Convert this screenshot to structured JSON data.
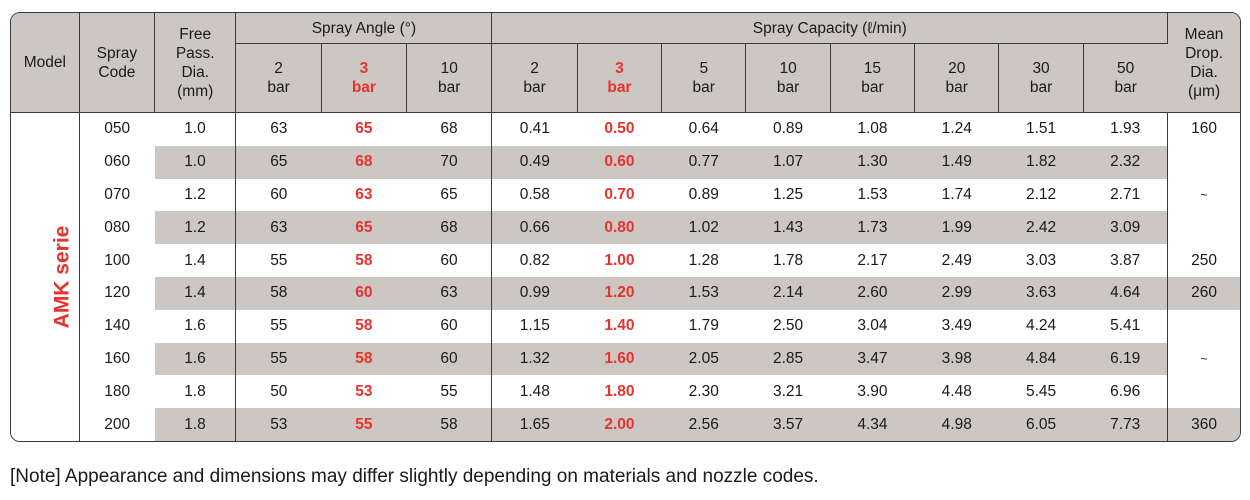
{
  "header": {
    "model": "Model",
    "spray_code": "Spray\nCode",
    "free_pass": "Free\nPass.\nDia.\n(mm)",
    "spray_angle": "Spray Angle (°)",
    "spray_capacity": "Spray Capacity (ℓ/min)",
    "mean_drop": "Mean\nDrop.\nDia.\n(μm)",
    "angle_pressures": [
      "2\nbar",
      "3\nbar",
      "10\nbar"
    ],
    "capacity_pressures": [
      "2\nbar",
      "3\nbar",
      "5\nbar",
      "10\nbar",
      "15\nbar",
      "20\nbar",
      "30\nbar",
      "50\nbar"
    ]
  },
  "series_label": "AMK serie",
  "rows": [
    {
      "code": "050",
      "pass": "1.0",
      "angle": [
        "63",
        "65",
        "68"
      ],
      "cap": [
        "0.41",
        "0.50",
        "0.64",
        "0.89",
        "1.08",
        "1.24",
        "1.51",
        "1.93"
      ]
    },
    {
      "code": "060",
      "pass": "1.0",
      "angle": [
        "65",
        "68",
        "70"
      ],
      "cap": [
        "0.49",
        "0.60",
        "0.77",
        "1.07",
        "1.30",
        "1.49",
        "1.82",
        "2.32"
      ]
    },
    {
      "code": "070",
      "pass": "1.2",
      "angle": [
        "60",
        "63",
        "65"
      ],
      "cap": [
        "0.58",
        "0.70",
        "0.89",
        "1.25",
        "1.53",
        "1.74",
        "2.12",
        "2.71"
      ]
    },
    {
      "code": "080",
      "pass": "1.2",
      "angle": [
        "63",
        "65",
        "68"
      ],
      "cap": [
        "0.66",
        "0.80",
        "1.02",
        "1.43",
        "1.73",
        "1.99",
        "2.42",
        "3.09"
      ]
    },
    {
      "code": "100",
      "pass": "1.4",
      "angle": [
        "55",
        "58",
        "60"
      ],
      "cap": [
        "0.82",
        "1.00",
        "1.28",
        "1.78",
        "2.17",
        "2.49",
        "3.03",
        "3.87"
      ]
    },
    {
      "code": "120",
      "pass": "1.4",
      "angle": [
        "58",
        "60",
        "63"
      ],
      "cap": [
        "0.99",
        "1.20",
        "1.53",
        "2.14",
        "2.60",
        "2.99",
        "3.63",
        "4.64"
      ]
    },
    {
      "code": "140",
      "pass": "1.6",
      "angle": [
        "55",
        "58",
        "60"
      ],
      "cap": [
        "1.15",
        "1.40",
        "1.79",
        "2.50",
        "3.04",
        "3.49",
        "4.24",
        "5.41"
      ]
    },
    {
      "code": "160",
      "pass": "1.6",
      "angle": [
        "55",
        "58",
        "60"
      ],
      "cap": [
        "1.32",
        "1.60",
        "2.05",
        "2.85",
        "3.47",
        "3.98",
        "4.84",
        "6.19"
      ]
    },
    {
      "code": "180",
      "pass": "1.8",
      "angle": [
        "50",
        "53",
        "55"
      ],
      "cap": [
        "1.48",
        "1.80",
        "2.30",
        "3.21",
        "3.90",
        "4.48",
        "5.45",
        "6.96"
      ]
    },
    {
      "code": "200",
      "pass": "1.8",
      "angle": [
        "53",
        "55",
        "58"
      ],
      "cap": [
        "1.65",
        "2.00",
        "2.56",
        "3.57",
        "4.34",
        "4.98",
        "6.05",
        "7.73"
      ]
    }
  ],
  "drop_values": [
    "160",
    "~",
    "250",
    "260",
    "~",
    "360"
  ],
  "colors": {
    "accent_red": "#e8322d",
    "shade_gray": "#ccc7c3",
    "border": "#3a3a3a"
  },
  "note": "[Note] Appearance and dimensions may differ slightly depending on materials and nozzle codes."
}
